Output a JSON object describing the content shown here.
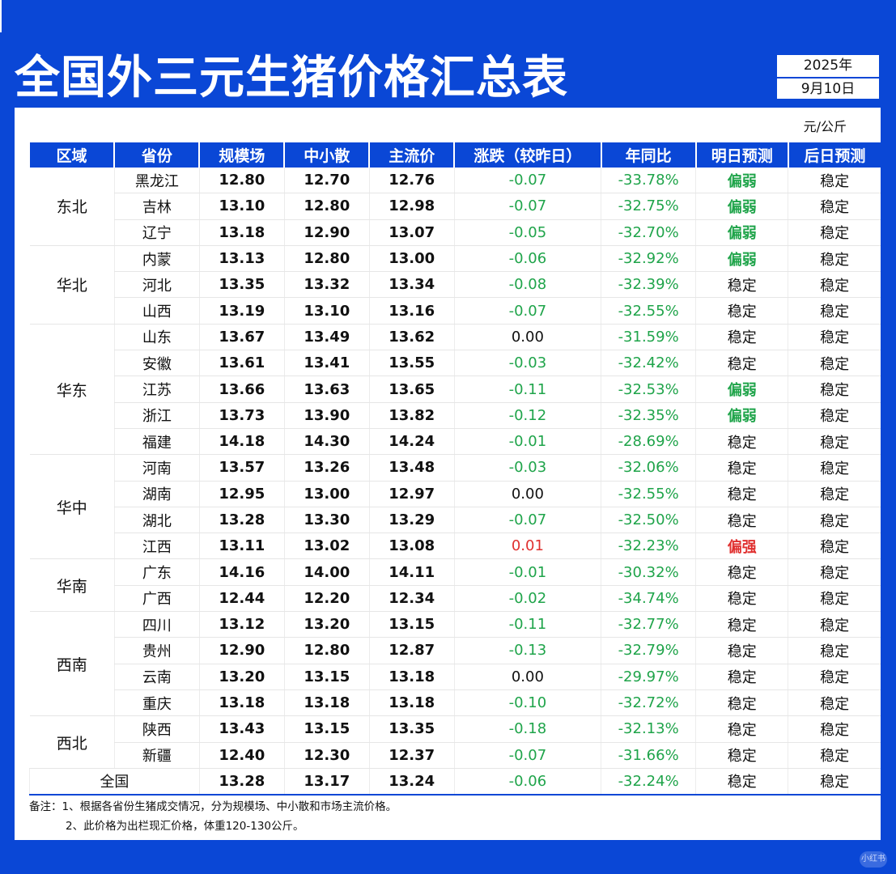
{
  "title": "全国外三元生猪价格汇总表",
  "date": {
    "year": "2025年",
    "day": "9月10日"
  },
  "unit": "元/公斤",
  "headers": [
    "区域",
    "省份",
    "规模场",
    "中小散",
    "主流价",
    "涨跌（较昨日）",
    "年同比",
    "明日预测",
    "后日预测"
  ],
  "regions": [
    {
      "name": "东北",
      "rows": [
        {
          "province": "黑龙江",
          "large": "12.80",
          "small": "12.70",
          "main": "12.76",
          "change": "-0.07",
          "yoy": "-33.78%",
          "tomorrow": "偏弱",
          "after": "稳定"
        },
        {
          "province": "吉林",
          "large": "13.10",
          "small": "12.80",
          "main": "12.98",
          "change": "-0.07",
          "yoy": "-32.75%",
          "tomorrow": "偏弱",
          "after": "稳定"
        },
        {
          "province": "辽宁",
          "large": "13.18",
          "small": "12.90",
          "main": "13.07",
          "change": "-0.05",
          "yoy": "-32.70%",
          "tomorrow": "偏弱",
          "after": "稳定"
        }
      ]
    },
    {
      "name": "华北",
      "rows": [
        {
          "province": "内蒙",
          "large": "13.13",
          "small": "12.80",
          "main": "13.00",
          "change": "-0.06",
          "yoy": "-32.92%",
          "tomorrow": "偏弱",
          "after": "稳定"
        },
        {
          "province": "河北",
          "large": "13.35",
          "small": "13.32",
          "main": "13.34",
          "change": "-0.08",
          "yoy": "-32.39%",
          "tomorrow": "稳定",
          "after": "稳定"
        },
        {
          "province": "山西",
          "large": "13.19",
          "small": "13.10",
          "main": "13.16",
          "change": "-0.07",
          "yoy": "-32.55%",
          "tomorrow": "稳定",
          "after": "稳定"
        }
      ]
    },
    {
      "name": "华东",
      "rows": [
        {
          "province": "山东",
          "large": "13.67",
          "small": "13.49",
          "main": "13.62",
          "change": "0.00",
          "yoy": "-31.59%",
          "tomorrow": "稳定",
          "after": "稳定"
        },
        {
          "province": "安徽",
          "large": "13.61",
          "small": "13.41",
          "main": "13.55",
          "change": "-0.03",
          "yoy": "-32.42%",
          "tomorrow": "稳定",
          "after": "稳定"
        },
        {
          "province": "江苏",
          "large": "13.66",
          "small": "13.63",
          "main": "13.65",
          "change": "-0.11",
          "yoy": "-32.53%",
          "tomorrow": "偏弱",
          "after": "稳定"
        },
        {
          "province": "浙江",
          "large": "13.73",
          "small": "13.90",
          "main": "13.82",
          "change": "-0.12",
          "yoy": "-32.35%",
          "tomorrow": "偏弱",
          "after": "稳定"
        },
        {
          "province": "福建",
          "large": "14.18",
          "small": "14.30",
          "main": "14.24",
          "change": "-0.01",
          "yoy": "-28.69%",
          "tomorrow": "稳定",
          "after": "稳定"
        }
      ]
    },
    {
      "name": "华中",
      "rows": [
        {
          "province": "河南",
          "large": "13.57",
          "small": "13.26",
          "main": "13.48",
          "change": "-0.03",
          "yoy": "-32.06%",
          "tomorrow": "稳定",
          "after": "稳定"
        },
        {
          "province": "湖南",
          "large": "12.95",
          "small": "13.00",
          "main": "12.97",
          "change": "0.00",
          "yoy": "-32.55%",
          "tomorrow": "稳定",
          "after": "稳定"
        },
        {
          "province": "湖北",
          "large": "13.28",
          "small": "13.30",
          "main": "13.29",
          "change": "-0.07",
          "yoy": "-32.50%",
          "tomorrow": "稳定",
          "after": "稳定"
        },
        {
          "province": "江西",
          "large": "13.11",
          "small": "13.02",
          "main": "13.08",
          "change": "0.01",
          "yoy": "-32.23%",
          "tomorrow": "偏强",
          "after": "稳定"
        }
      ]
    },
    {
      "name": "华南",
      "rows": [
        {
          "province": "广东",
          "large": "14.16",
          "small": "14.00",
          "main": "14.11",
          "change": "-0.01",
          "yoy": "-30.32%",
          "tomorrow": "稳定",
          "after": "稳定"
        },
        {
          "province": "广西",
          "large": "12.44",
          "small": "12.20",
          "main": "12.34",
          "change": "-0.02",
          "yoy": "-34.74%",
          "tomorrow": "稳定",
          "after": "稳定"
        }
      ]
    },
    {
      "name": "西南",
      "rows": [
        {
          "province": "四川",
          "large": "13.12",
          "small": "13.20",
          "main": "13.15",
          "change": "-0.11",
          "yoy": "-32.77%",
          "tomorrow": "稳定",
          "after": "稳定"
        },
        {
          "province": "贵州",
          "large": "12.90",
          "small": "12.80",
          "main": "12.87",
          "change": "-0.13",
          "yoy": "-32.79%",
          "tomorrow": "稳定",
          "after": "稳定"
        },
        {
          "province": "云南",
          "large": "13.20",
          "small": "13.15",
          "main": "13.18",
          "change": "0.00",
          "yoy": "-29.97%",
          "tomorrow": "稳定",
          "after": "稳定"
        },
        {
          "province": "重庆",
          "large": "13.18",
          "small": "13.18",
          "main": "13.18",
          "change": "-0.10",
          "yoy": "-32.72%",
          "tomorrow": "稳定",
          "after": "稳定"
        }
      ]
    },
    {
      "name": "西北",
      "rows": [
        {
          "province": "陕西",
          "large": "13.43",
          "small": "13.15",
          "main": "13.35",
          "change": "-0.18",
          "yoy": "-32.13%",
          "tomorrow": "稳定",
          "after": "稳定"
        },
        {
          "province": "新疆",
          "large": "12.40",
          "small": "12.30",
          "main": "12.37",
          "change": "-0.07",
          "yoy": "-31.66%",
          "tomorrow": "稳定",
          "after": "稳定"
        }
      ]
    }
  ],
  "national": {
    "label": "全国",
    "large": "13.28",
    "small": "13.17",
    "main": "13.24",
    "change": "-0.06",
    "yoy": "-32.24%",
    "tomorrow": "稳定",
    "after": "稳定"
  },
  "notes": [
    "备注：1、根据各省份生猪成交情况，分为规模场、中小散和市场主流价格。",
    "2、此价格为出栏现汇价格，体重120-130公斤。"
  ],
  "watermark": "小红书",
  "colors": {
    "brand_blue": "#0a47d6",
    "down_green": "#1fa44a",
    "up_red": "#e0302f"
  }
}
